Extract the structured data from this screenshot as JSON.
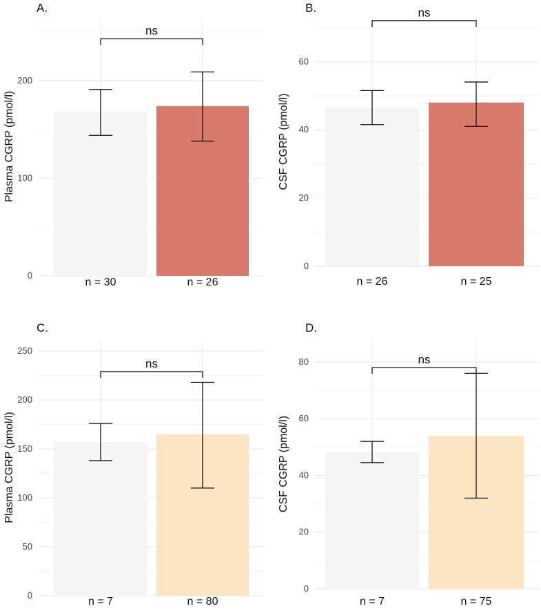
{
  "chart_data": [
    {
      "type": "bar",
      "panel_label": "A.",
      "ylabel": "Plasma CGRP (pmol/l)",
      "categories": [
        "n = 30",
        "n = 26"
      ],
      "values": [
        168,
        174
      ],
      "error_low": [
        144,
        138
      ],
      "error_high": [
        191,
        209
      ],
      "bar_colors": [
        "#f5f5f5",
        "#d97b6c"
      ],
      "ylim": [
        0,
        265
      ],
      "yticks": [
        0,
        100,
        200
      ],
      "grid_minor": [
        50,
        150,
        250
      ],
      "significance": {
        "label": "ns",
        "y": 243
      }
    },
    {
      "type": "bar",
      "panel_label": "B.",
      "ylabel": "CSF CGRP (pmol/l)",
      "categories": [
        "n = 26",
        "n = 25"
      ],
      "values": [
        46.5,
        48
      ],
      "error_low": [
        41.5,
        41
      ],
      "error_high": [
        51.5,
        54
      ],
      "bar_colors": [
        "#f5f5f5",
        "#d97b6c"
      ],
      "ylim": [
        0,
        73
      ],
      "yticks": [
        0,
        20,
        40,
        60
      ],
      "grid_minor": [
        10,
        30,
        50,
        70
      ],
      "significance": {
        "label": "ns",
        "y": 72
      }
    },
    {
      "type": "bar",
      "panel_label": "C.",
      "ylabel": "Plasma CGRP (pmol/l)",
      "categories": [
        "n = 7",
        "n = 80"
      ],
      "values": [
        157,
        165
      ],
      "error_low": [
        138,
        110
      ],
      "error_high": [
        176,
        218
      ],
      "bar_colors": [
        "#f5f5f5",
        "#fde5c2"
      ],
      "ylim": [
        0,
        262
      ],
      "yticks": [
        0,
        50,
        100,
        150,
        200,
        250
      ],
      "grid_minor": [
        25,
        75,
        125,
        175,
        225
      ],
      "significance": {
        "label": "ns",
        "y": 229
      }
    },
    {
      "type": "bar",
      "panel_label": "D.",
      "ylabel": "CSF CGRP (pmol/l)",
      "categories": [
        "n = 7",
        "n = 75"
      ],
      "values": [
        48,
        54
      ],
      "error_low": [
        44.5,
        32
      ],
      "error_high": [
        52,
        76
      ],
      "bar_colors": [
        "#f5f5f5",
        "#fde5c2"
      ],
      "ylim": [
        0,
        88
      ],
      "yticks": [
        0,
        20,
        40,
        60,
        80
      ],
      "grid_minor": [
        10,
        30,
        50,
        70
      ],
      "significance": {
        "label": "ns",
        "y": 78
      }
    }
  ]
}
